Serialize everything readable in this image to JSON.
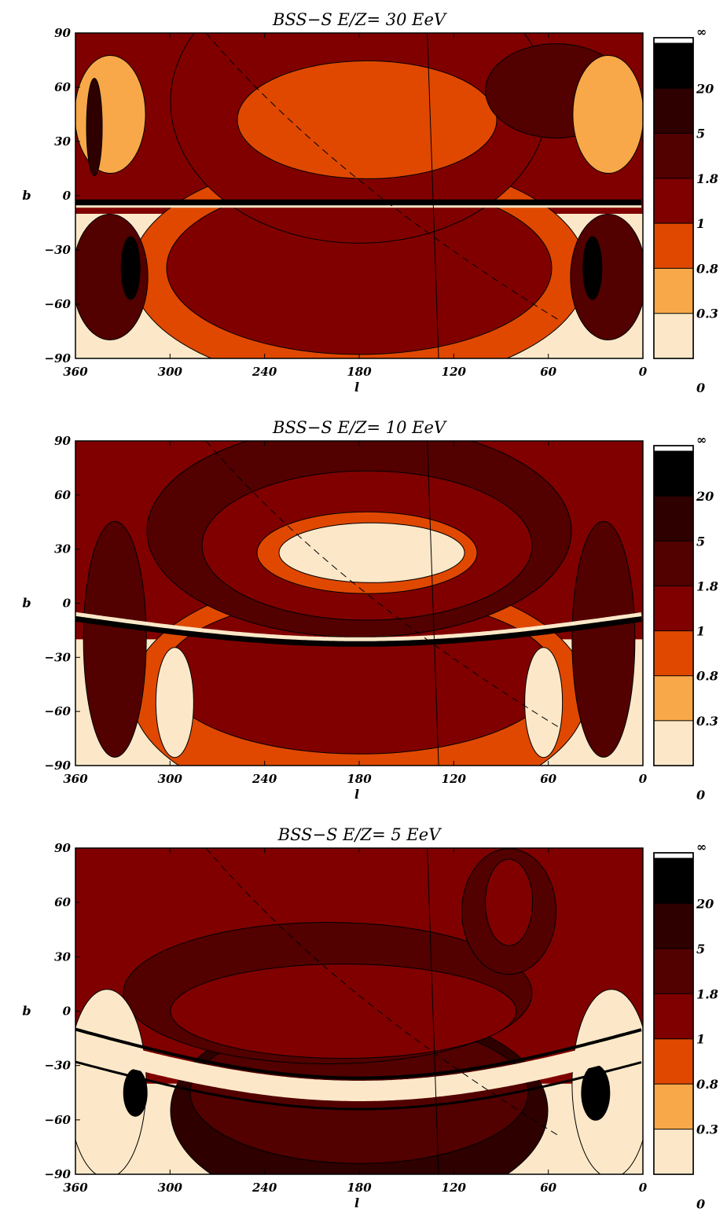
{
  "chart_data": [
    {
      "type": "heatmap",
      "title": "BSS−S   E/Z= 30 EeV",
      "xlabel": "l",
      "ylabel": "b",
      "xlim": [
        360,
        0
      ],
      "ylim": [
        -90,
        90
      ],
      "xticks": [
        "360",
        "300",
        "240",
        "180",
        "120",
        "60",
        "0"
      ],
      "yticks": [
        "90",
        "60",
        "30",
        "0",
        "−30",
        "−60",
        "−90"
      ],
      "colorbar_labels": [
        "∞",
        "20",
        "5",
        "1.8",
        "1",
        "0.8",
        "0.3",
        "0"
      ],
      "color_levels": [
        "#000000",
        "#2e0000",
        "#520000",
        "#800000",
        "#e04800",
        "#f8a848",
        "#fce8c8"
      ]
    },
    {
      "type": "heatmap",
      "title": "BSS−S   E/Z= 10 EeV",
      "xlabel": "l",
      "ylabel": "b",
      "xlim": [
        360,
        0
      ],
      "ylim": [
        -90,
        90
      ],
      "xticks": [
        "360",
        "300",
        "240",
        "180",
        "120",
        "60",
        "0"
      ],
      "yticks": [
        "90",
        "60",
        "30",
        "0",
        "−30",
        "−60",
        "−90"
      ],
      "colorbar_labels": [
        "∞",
        "20",
        "5",
        "1.8",
        "1",
        "0.8",
        "0.3",
        "0"
      ],
      "color_levels": [
        "#000000",
        "#2e0000",
        "#520000",
        "#800000",
        "#e04800",
        "#f8a848",
        "#fce8c8"
      ]
    },
    {
      "type": "heatmap",
      "title": "BSS−S   E/Z= 5 EeV",
      "xlabel": "l",
      "ylabel": "b",
      "xlim": [
        360,
        0
      ],
      "ylim": [
        -90,
        90
      ],
      "xticks": [
        "360",
        "300",
        "240",
        "180",
        "120",
        "60",
        "0"
      ],
      "yticks": [
        "90",
        "60",
        "30",
        "0",
        "−30",
        "−60",
        "−90"
      ],
      "colorbar_labels": [
        "∞",
        "20",
        "5",
        "1.8",
        "1",
        "0.8",
        "0.3",
        "0"
      ],
      "color_levels": [
        "#000000",
        "#2e0000",
        "#520000",
        "#800000",
        "#e04800",
        "#f8a848",
        "#fce8c8"
      ]
    }
  ]
}
